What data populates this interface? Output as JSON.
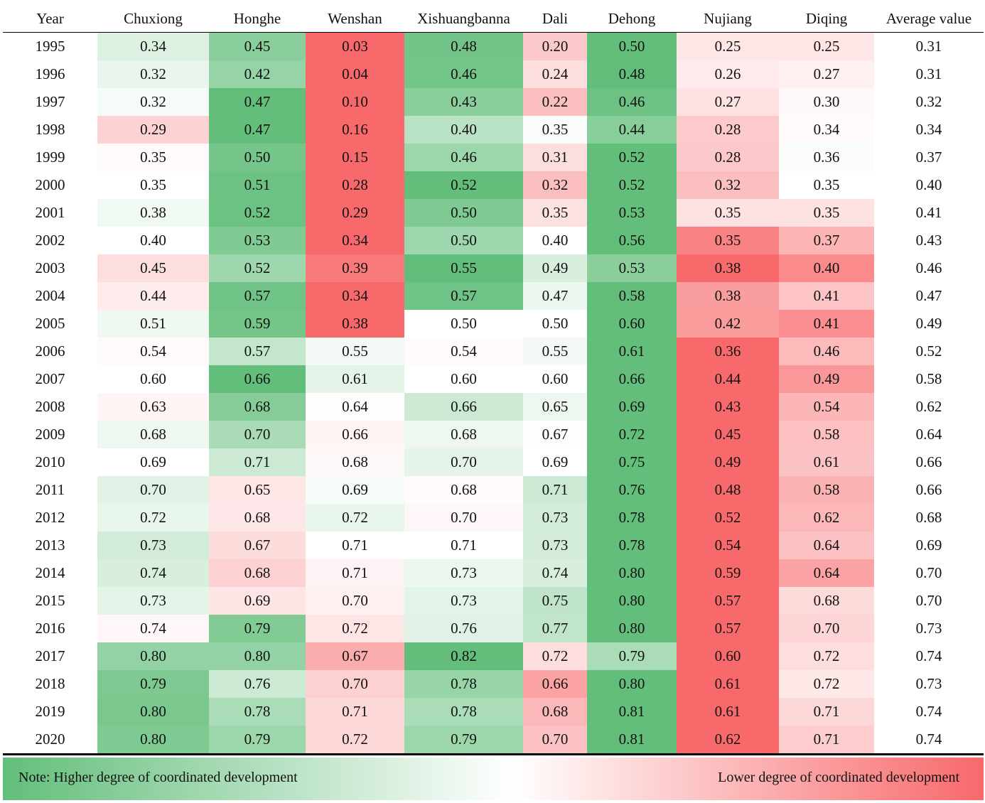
{
  "chart_data": {
    "type": "heatmap",
    "title": "",
    "row_header": "Year",
    "columns": [
      "Chuxiong",
      "Honghe",
      "Wenshan",
      "Xishuangbanna",
      "Dali",
      "Dehong",
      "Nujiang",
      "Diqing",
      "Average value"
    ],
    "rows": [
      "1995",
      "1996",
      "1997",
      "1998",
      "1999",
      "2000",
      "2001",
      "2002",
      "2003",
      "2004",
      "2005",
      "2006",
      "2007",
      "2008",
      "2009",
      "2010",
      "2011",
      "2012",
      "2013",
      "2014",
      "2015",
      "2016",
      "2017",
      "2018",
      "2019",
      "2020"
    ],
    "values": [
      [
        0.34,
        0.45,
        0.03,
        0.48,
        0.2,
        0.5,
        0.25,
        0.25,
        0.31
      ],
      [
        0.32,
        0.42,
        0.04,
        0.46,
        0.24,
        0.48,
        0.26,
        0.27,
        0.31
      ],
      [
        0.32,
        0.47,
        0.1,
        0.43,
        0.22,
        0.46,
        0.27,
        0.3,
        0.32
      ],
      [
        0.29,
        0.47,
        0.16,
        0.4,
        0.35,
        0.44,
        0.28,
        0.34,
        0.34
      ],
      [
        0.35,
        0.5,
        0.15,
        0.46,
        0.31,
        0.52,
        0.28,
        0.36,
        0.37
      ],
      [
        0.35,
        0.51,
        0.28,
        0.52,
        0.32,
        0.52,
        0.32,
        0.35,
        0.4
      ],
      [
        0.38,
        0.52,
        0.29,
        0.5,
        0.35,
        0.53,
        0.35,
        0.35,
        0.41
      ],
      [
        0.4,
        0.53,
        0.34,
        0.5,
        0.4,
        0.56,
        0.35,
        0.37,
        0.43
      ],
      [
        0.45,
        0.52,
        0.39,
        0.55,
        0.49,
        0.53,
        0.38,
        0.4,
        0.46
      ],
      [
        0.44,
        0.57,
        0.34,
        0.57,
        0.47,
        0.58,
        0.38,
        0.41,
        0.47
      ],
      [
        0.51,
        0.59,
        0.38,
        0.5,
        0.5,
        0.6,
        0.42,
        0.41,
        0.49
      ],
      [
        0.54,
        0.57,
        0.55,
        0.54,
        0.55,
        0.61,
        0.36,
        0.46,
        0.52
      ],
      [
        0.6,
        0.66,
        0.61,
        0.6,
        0.6,
        0.66,
        0.44,
        0.49,
        0.58
      ],
      [
        0.63,
        0.68,
        0.64,
        0.66,
        0.65,
        0.69,
        0.43,
        0.54,
        0.62
      ],
      [
        0.68,
        0.7,
        0.66,
        0.68,
        0.67,
        0.72,
        0.45,
        0.58,
        0.64
      ],
      [
        0.69,
        0.71,
        0.68,
        0.7,
        0.69,
        0.75,
        0.49,
        0.61,
        0.66
      ],
      [
        0.7,
        0.65,
        0.69,
        0.68,
        0.71,
        0.76,
        0.48,
        0.58,
        0.66
      ],
      [
        0.72,
        0.68,
        0.72,
        0.7,
        0.73,
        0.78,
        0.52,
        0.62,
        0.68
      ],
      [
        0.73,
        0.67,
        0.71,
        0.71,
        0.73,
        0.78,
        0.54,
        0.64,
        0.69
      ],
      [
        0.74,
        0.68,
        0.71,
        0.73,
        0.74,
        0.8,
        0.59,
        0.64,
        0.7
      ],
      [
        0.73,
        0.69,
        0.7,
        0.73,
        0.75,
        0.8,
        0.57,
        0.68,
        0.7
      ],
      [
        0.74,
        0.79,
        0.72,
        0.76,
        0.77,
        0.8,
        0.57,
        0.7,
        0.73
      ],
      [
        0.8,
        0.8,
        0.67,
        0.82,
        0.72,
        0.79,
        0.6,
        0.72,
        0.74
      ],
      [
        0.79,
        0.76,
        0.7,
        0.78,
        0.66,
        0.8,
        0.61,
        0.72,
        0.73
      ],
      [
        0.8,
        0.78,
        0.71,
        0.78,
        0.68,
        0.81,
        0.61,
        0.71,
        0.74
      ],
      [
        0.8,
        0.79,
        0.72,
        0.79,
        0.7,
        0.81,
        0.62,
        0.71,
        0.74
      ]
    ],
    "colored_columns": [
      "Chuxiong",
      "Honghe",
      "Wenshan",
      "Xishuangbanna",
      "Dali",
      "Dehong",
      "Nujiang",
      "Diqing"
    ],
    "color_scale": {
      "mode": "per-row",
      "high_color": "#63be7b",
      "mid_color": "#ffffff",
      "low_color": "#f8696b"
    },
    "legend": {
      "left_text": "Note: Higher degree of coordinated development",
      "right_text": "Lower degree of coordinated development",
      "placement": "bottom"
    }
  }
}
